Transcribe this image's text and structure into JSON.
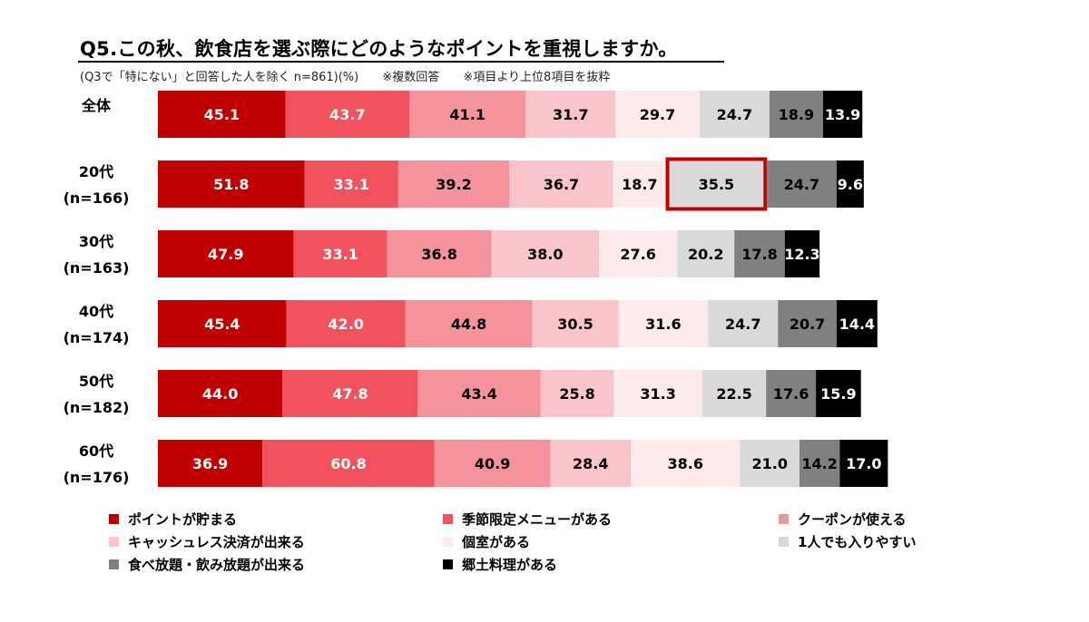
{
  "header": {
    "title": "Q5.この秋、飲食店を選ぶ際にどのようなポイントを重視しますか。",
    "subtitle_parts": [
      "(Q3で「特にない」と回答した人を除く n=861)(%)",
      "※複数回答",
      "※項目より上位8項目を抜粋"
    ]
  },
  "chart_data": {
    "type": "bar",
    "orientation": "horizontal",
    "stacked": true,
    "title": "Q5.この秋、飲食店を選ぶ際にどのようなポイントを重視しますか。",
    "categories": [
      {
        "line1": "全体",
        "line2": ""
      },
      {
        "line1": "20代",
        "line2": "(n=166)"
      },
      {
        "line1": "30代",
        "line2": "(n=163)"
      },
      {
        "line1": "40代",
        "line2": "(n=174)"
      },
      {
        "line1": "50代",
        "line2": "(n=182)"
      },
      {
        "line1": "60代",
        "line2": "(n=176)"
      }
    ],
    "series": [
      {
        "name": "ポイントが貯まる",
        "color": "#c00000",
        "text_color": "#ffffff",
        "values": [
          45.1,
          51.8,
          47.9,
          45.4,
          44.0,
          36.9
        ]
      },
      {
        "name": "季節限定メニューがある",
        "color": "#f0525e",
        "text_color": "#ffffff",
        "values": [
          43.7,
          33.1,
          33.1,
          42.0,
          47.8,
          60.8
        ]
      },
      {
        "name": "クーポンが使える",
        "color": "#f4939b",
        "text_color": "#000000",
        "values": [
          41.1,
          39.2,
          36.8,
          44.8,
          43.4,
          40.9
        ]
      },
      {
        "name": "キャッシュレス決済が出来る",
        "color": "#f9c5cb",
        "text_color": "#000000",
        "values": [
          31.7,
          36.7,
          38.0,
          30.5,
          25.8,
          28.4
        ]
      },
      {
        "name": "個室がある",
        "color": "#fdeaea",
        "text_color": "#000000",
        "values": [
          29.7,
          18.7,
          27.6,
          31.6,
          31.3,
          38.6
        ]
      },
      {
        "name": "1人でも入りやすい",
        "color": "#d9d9d9",
        "text_color": "#000000",
        "values": [
          24.7,
          35.5,
          20.2,
          24.7,
          22.5,
          21.0
        ]
      },
      {
        "name": "食べ放題・飲み放題が出来る",
        "color": "#808080",
        "text_color": "#000000",
        "values": [
          18.9,
          24.7,
          17.8,
          20.7,
          17.6,
          14.2
        ]
      },
      {
        "name": "郷土料理がある",
        "color": "#000000",
        "text_color": "#ffffff",
        "values": [
          13.9,
          9.6,
          12.3,
          14.4,
          15.9,
          17.0
        ]
      }
    ],
    "highlight": {
      "row": 1,
      "series": 5,
      "color": "#c00000"
    },
    "legend_position": "bottom",
    "grid": false
  }
}
